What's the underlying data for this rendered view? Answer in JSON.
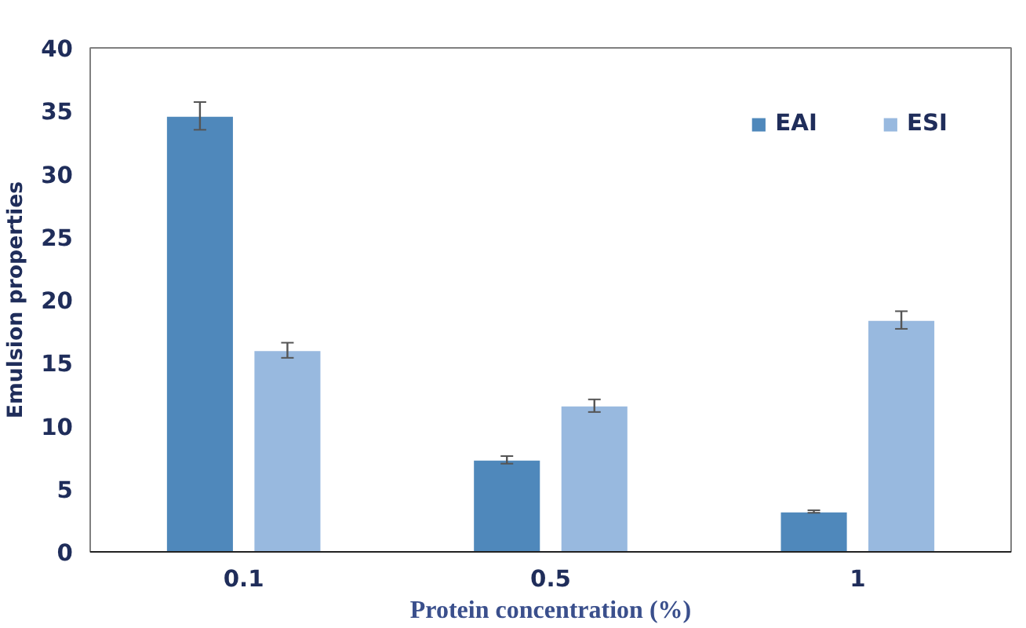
{
  "chart_data": {
    "type": "bar",
    "xlabel": "Protein concentration (%)",
    "ylabel": "Emulsion properties",
    "categories": [
      "0.1",
      "0.5",
      "1"
    ],
    "series": [
      {
        "name": "EAI",
        "color": "#4f88bb",
        "values": [
          34.6,
          7.3,
          3.2
        ],
        "errors": [
          1.1,
          0.3,
          0.1
        ]
      },
      {
        "name": "ESI",
        "color": "#98b9df",
        "values": [
          16.0,
          11.6,
          18.4
        ],
        "errors": [
          0.6,
          0.5,
          0.7
        ]
      }
    ],
    "ylim": [
      0,
      40
    ],
    "yticks": [
      0,
      5,
      10,
      15,
      20,
      25,
      30,
      35,
      40
    ],
    "grid": false,
    "legend": "top right"
  }
}
